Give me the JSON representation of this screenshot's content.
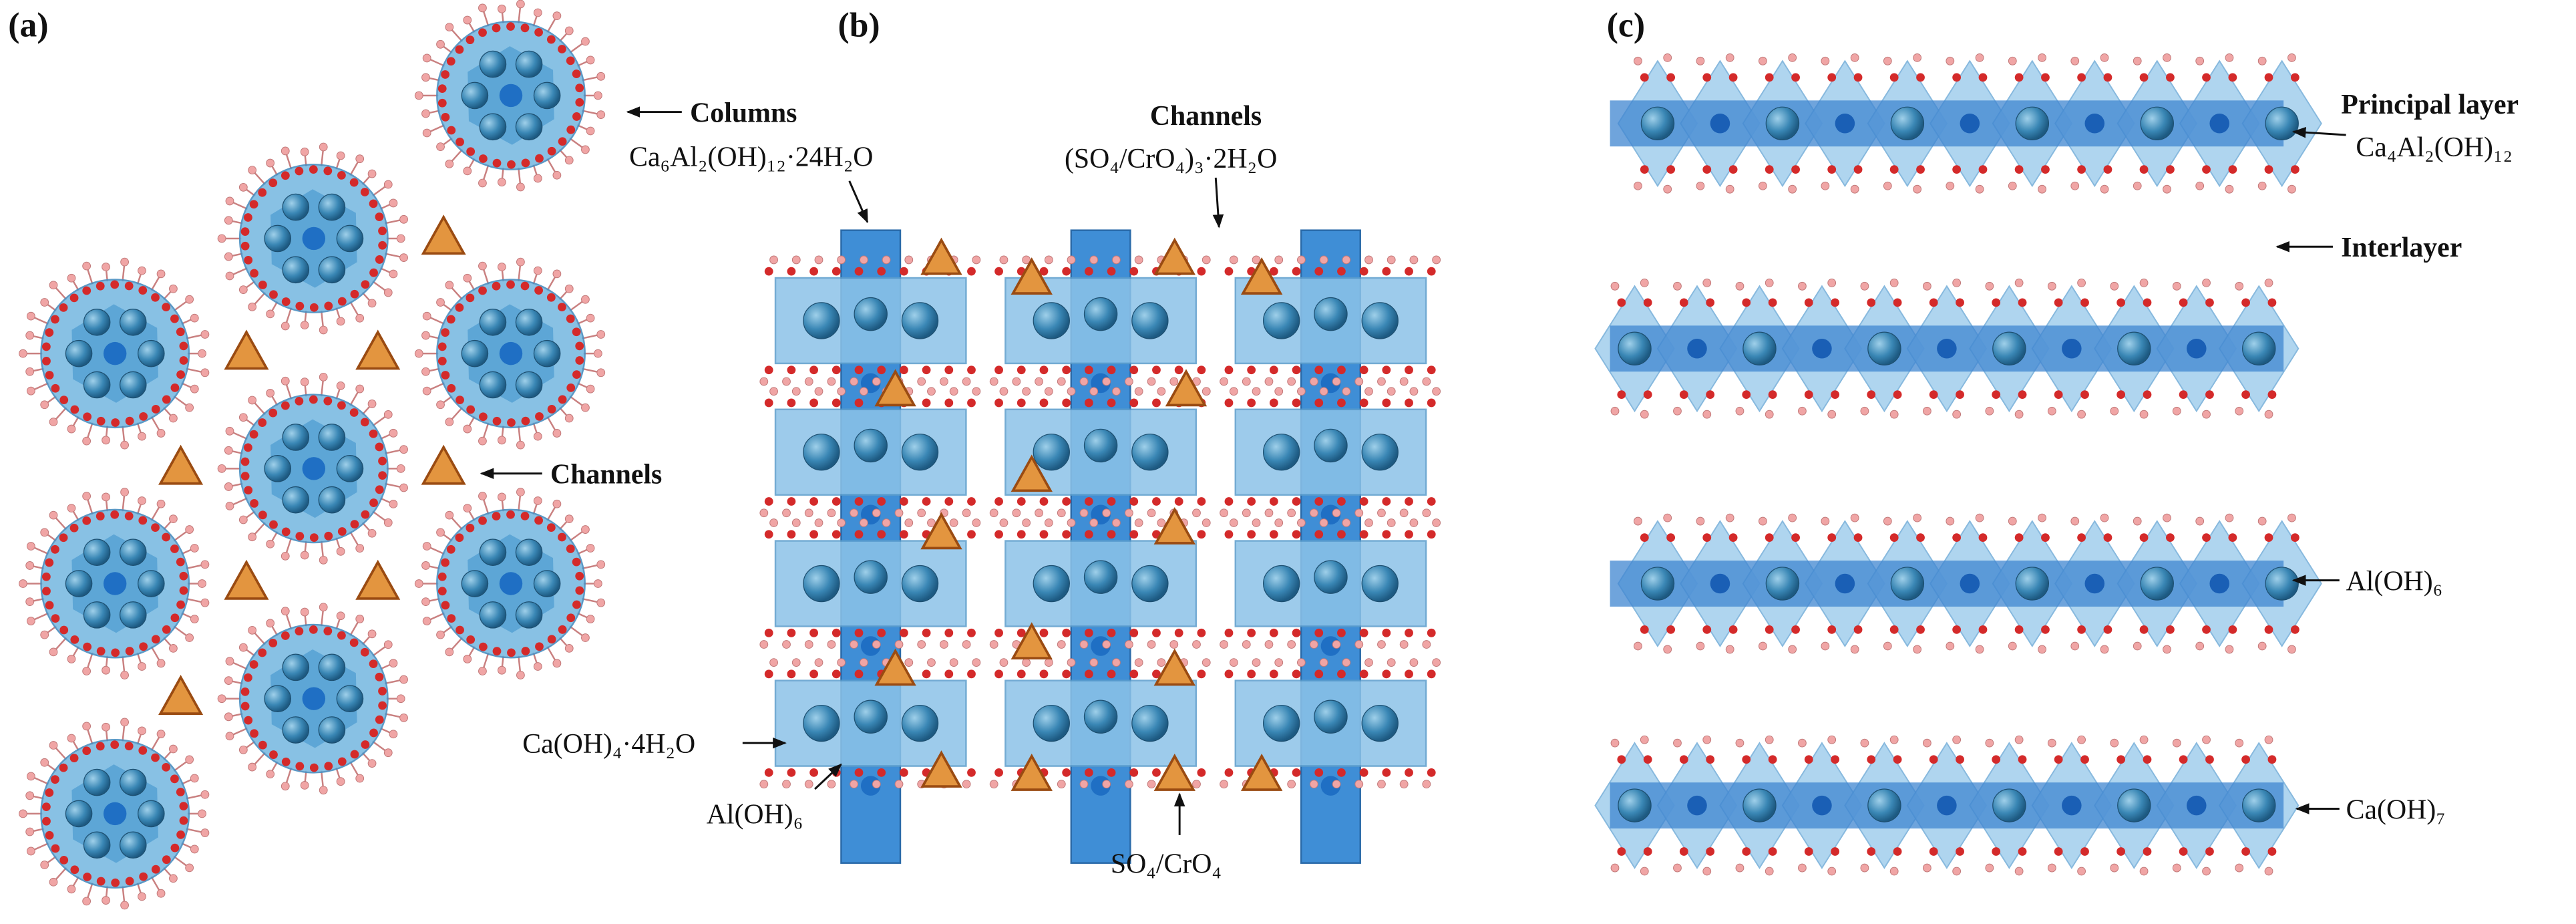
{
  "panels": [
    {
      "label": "(a)",
      "annotations": [
        "Columns",
        "Ca₆Al₂(OH)₁₂·24H₂O",
        "Channels"
      ]
    },
    {
      "label": "(b)",
      "annotations": [
        "Channels",
        "(SO₄/CrO₄)₃·2H₂O",
        "Ca(OH)₄·4H₂O",
        "Al(OH)₆",
        "SO₄/CrO₄"
      ]
    },
    {
      "label": "(c)",
      "annotations": [
        "Principal layer",
        "Ca₄Al₂(OH)₁₂",
        "Interlayer",
        "Al(OH)₆",
        "Ca(OH)₇"
      ]
    }
  ]
}
